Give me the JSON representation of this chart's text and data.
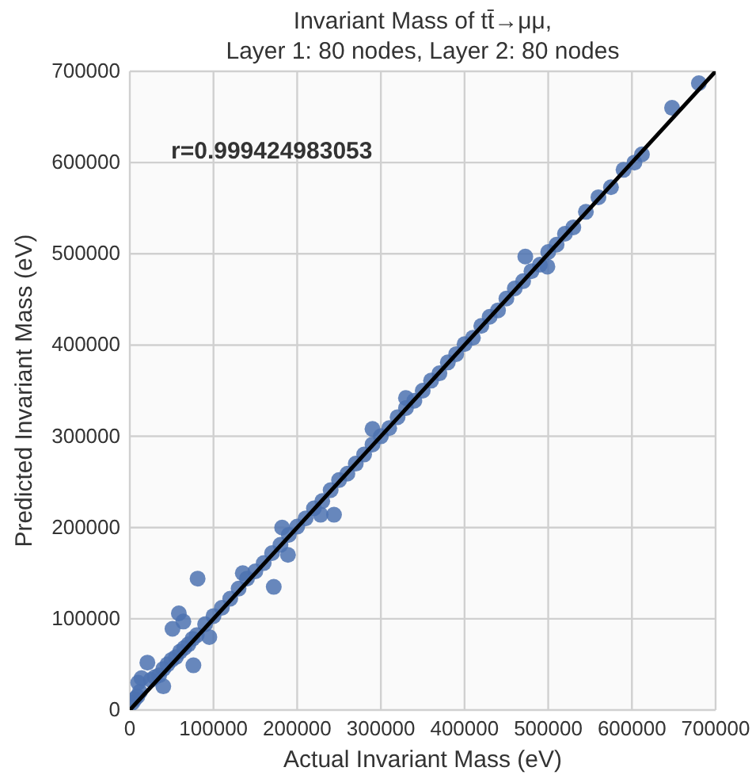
{
  "chart_data": {
    "type": "scatter",
    "title": "Invariant Mass of tt̄→μμ,",
    "subtitle": "Layer 1: 80 nodes, Layer 2: 80 nodes",
    "xlabel": "Actual Invariant Mass (eV)",
    "ylabel": "Predicted Invariant Mass (eV)",
    "annotations": [
      "r=0.999424983053"
    ],
    "xlim": [
      0,
      700000
    ],
    "ylim": [
      0,
      700000
    ],
    "xticks": [
      0,
      100000,
      200000,
      300000,
      400000,
      500000,
      600000,
      700000
    ],
    "yticks": [
      0,
      100000,
      200000,
      300000,
      400000,
      500000,
      600000,
      700000
    ],
    "grid": true,
    "marker": "circle",
    "series": [
      {
        "color": "#4c72b0",
        "x": [
          3000,
          6000,
          9000,
          12000,
          25000,
          30000,
          35000,
          40000,
          45000,
          50000,
          55000,
          60000,
          65000,
          70000,
          75000,
          80000,
          90000,
          100000,
          110000,
          120000,
          130000,
          140000,
          150000,
          160000,
          170000,
          180000,
          190000,
          200000,
          210000,
          220000,
          230000,
          240000,
          250000,
          260000,
          270000,
          280000,
          290000,
          300000,
          310000,
          320000,
          330000,
          340000,
          350000,
          360000,
          370000,
          380000,
          390000,
          400000,
          410000,
          420000,
          430000,
          440000,
          450000,
          460000,
          470000,
          480000,
          490000,
          500000,
          510000,
          520000,
          530000,
          545000,
          560000,
          575000,
          590000,
          603000,
          612000,
          648000,
          680000,
          10000,
          14000,
          21000,
          40000,
          51000,
          58600,
          64000,
          76000,
          81000,
          172000,
          189000,
          244000,
          472600,
          499000,
          290000,
          182000,
          135000,
          228000,
          95000,
          330000
        ],
        "values": [
          8000,
          12000,
          15000,
          20000,
          33000,
          36000,
          38000,
          45000,
          50000,
          55000,
          58000,
          64000,
          68000,
          72000,
          78000,
          82000,
          94000,
          103000,
          112000,
          122000,
          133000,
          144000,
          152000,
          161000,
          172000,
          181000,
          192000,
          201000,
          210000,
          221000,
          229000,
          241000,
          252000,
          259000,
          270000,
          280000,
          291000,
          300000,
          309000,
          321000,
          331000,
          339000,
          350000,
          361000,
          369000,
          381000,
          390000,
          401000,
          408000,
          421000,
          431000,
          438000,
          451000,
          462000,
          470000,
          481000,
          488000,
          502000,
          510000,
          522000,
          529000,
          546000,
          562000,
          573000,
          592000,
          600000,
          609000,
          660000,
          687000,
          30000,
          35000,
          52000,
          26000,
          89000,
          106000,
          97000,
          49000,
          144000,
          135000,
          170000,
          214000,
          497000,
          486000,
          308000,
          200000,
          150000,
          214000,
          80000,
          342000
        ]
      },
      {
        "type": "line",
        "color": "#000000",
        "line_style": "solid",
        "marker": "none",
        "x": [
          0,
          700000
        ],
        "values": [
          0,
          700000
        ]
      }
    ]
  }
}
